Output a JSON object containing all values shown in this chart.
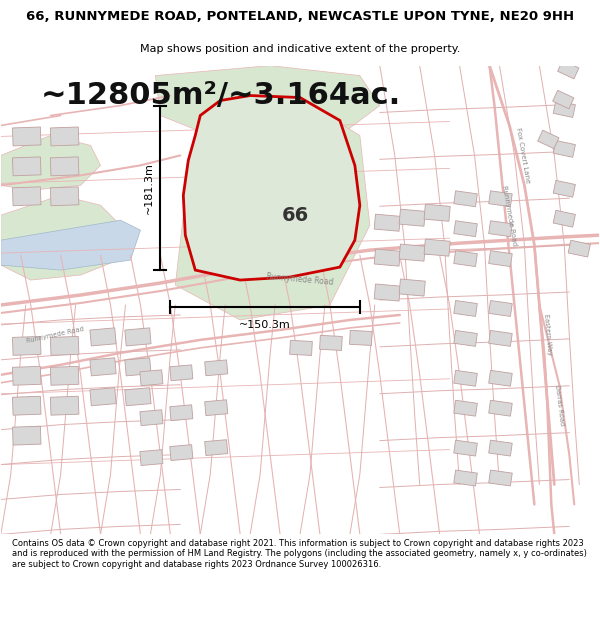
{
  "title": "66, RUNNYMEDE ROAD, PONTELAND, NEWCASTLE UPON TYNE, NE20 9HH",
  "subtitle": "Map shows position and indicative extent of the property.",
  "area_text": "~12805m²/~3.164ac.",
  "property_label": "66",
  "dim_vertical": "~181.3m",
  "dim_horizontal": "~150.3m",
  "footer": "Contains OS data © Crown copyright and database right 2021. This information is subject to Crown copyright and database rights 2023 and is reproduced with the permission of HM Land Registry. The polygons (including the associated geometry, namely x, y co-ordinates) are subject to Crown copyright and database rights 2023 Ordnance Survey 100026316.",
  "bg_color": "#ffffff",
  "map_bg": "#ffffff",
  "road_color": "#e8b4b4",
  "parcel_edge": "#e8b4b4",
  "property_fill": "#dde8d8",
  "property_edge": "#cc0000",
  "building_fill": "#d8d8d8",
  "building_edge": "#c0a0a0",
  "green_fill": "#d8e8d0",
  "water_fill": "#c8d8e8",
  "dim_line_color": "#000000",
  "title_fontsize": 9.5,
  "subtitle_fontsize": 8,
  "area_fontsize": 22,
  "label_fontsize": 14,
  "dim_fontsize": 8,
  "footer_fontsize": 6.0
}
